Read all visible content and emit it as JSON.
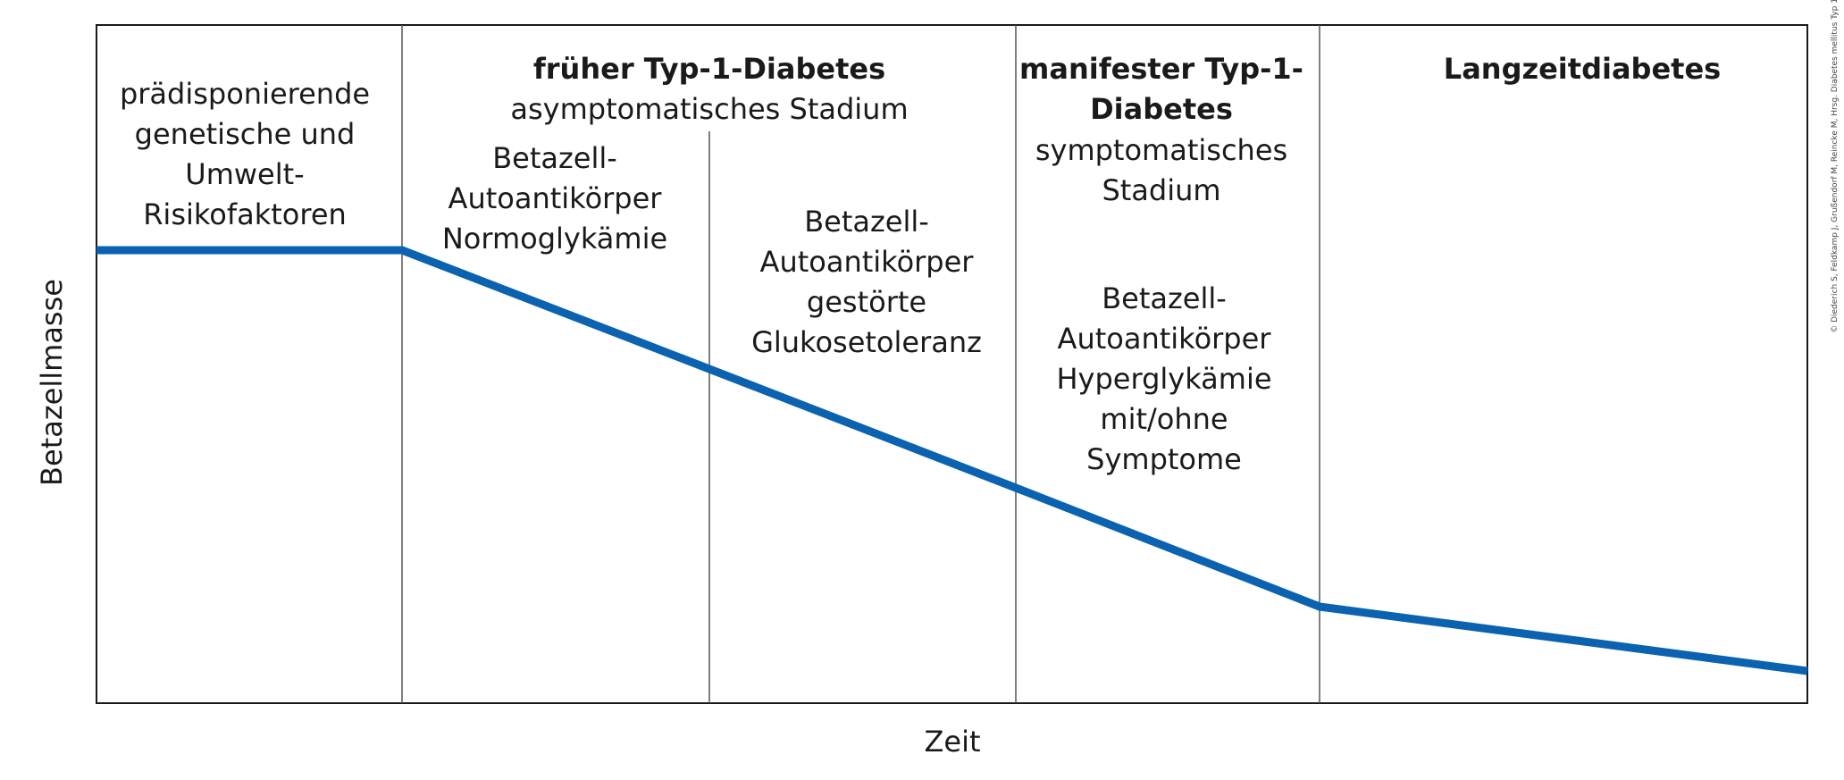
{
  "y_axis_label": "Betazellmasse",
  "x_axis_label": "Zeit",
  "copyright": "© Diederich S, Feldkamp J, Grußendorf M, Reincke M, Hrsg. Diabetes mellitus Typ 1.",
  "phases": [
    {
      "description": [
        "prädisponierende",
        "genetische und",
        "Umwelt-",
        "Risikofaktoren"
      ]
    },
    {
      "title": [
        "früher Typ-1-Diabetes"
      ],
      "subtitle": [
        "asymptomatisches Stadium"
      ],
      "stages": [
        {
          "description": [
            "Betazell-",
            "Autoantikörper",
            "Normoglykämie"
          ]
        },
        {
          "description": [
            "Betazell-",
            "Autoantikörper",
            "gestörte",
            "Glukosetoleranz"
          ]
        }
      ]
    },
    {
      "title": [
        "manifester Typ-1-",
        "Diabetes"
      ],
      "subtitle": [
        "symptomatisches",
        "Stadium"
      ],
      "description": [
        "Betazell-",
        "Autoantikörper",
        "Hyperglykämie",
        "mit/ohne",
        "Symptome"
      ]
    },
    {
      "title": [
        "Langzeitdiabetes"
      ]
    }
  ]
}
